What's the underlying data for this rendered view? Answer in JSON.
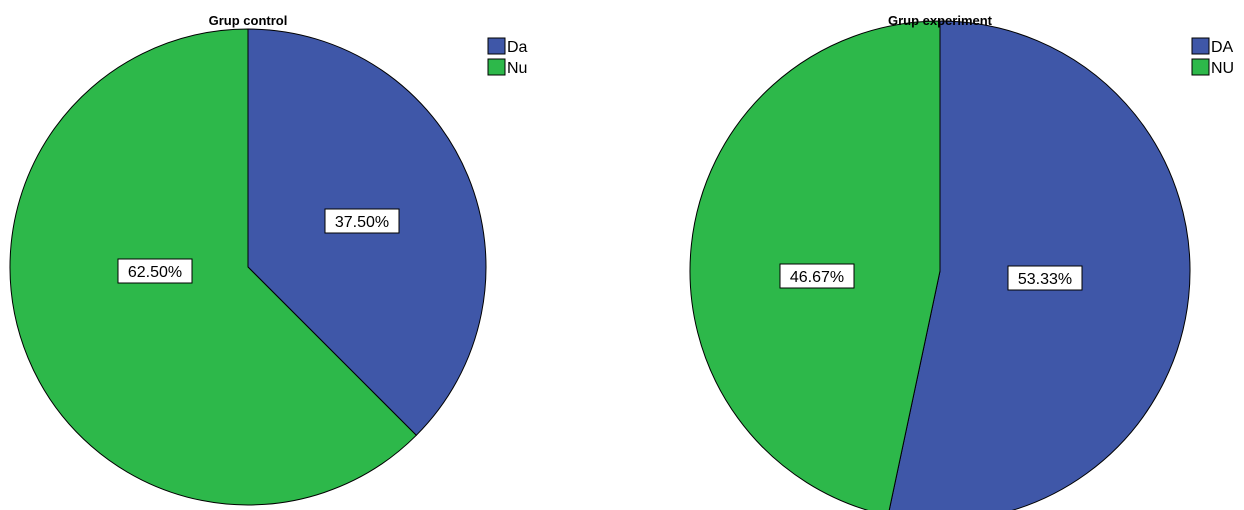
{
  "chart_data": [
    {
      "type": "pie",
      "title": "Grup control",
      "slices": [
        {
          "label": "Da",
          "value": 37.5,
          "display": "37.50%",
          "color": "#3f57a8"
        },
        {
          "label": "Nu",
          "value": 62.5,
          "display": "62.50%",
          "color": "#2db84a"
        }
      ],
      "legend_position": "top-right",
      "start_angle": "12 o'clock",
      "direction": "clockwise"
    },
    {
      "type": "pie",
      "title": "Grup experiment",
      "slices": [
        {
          "label": "DA",
          "value": 53.33,
          "display": "53.33%",
          "color": "#3f57a8"
        },
        {
          "label": "NU",
          "value": 46.67,
          "display": "46.67%",
          "color": "#2db84a"
        }
      ],
      "legend_position": "top-right",
      "start_angle": "12 o'clock",
      "direction": "clockwise"
    }
  ]
}
